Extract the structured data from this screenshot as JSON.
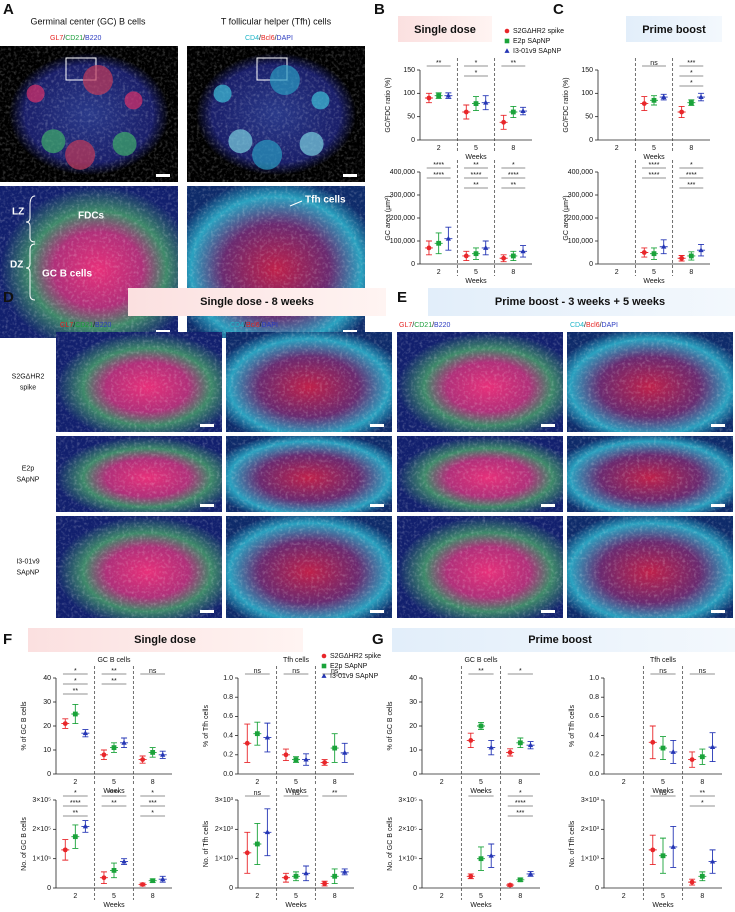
{
  "panel_a": {
    "letter": "A",
    "gc_title": "Germinal center (GC) B cells",
    "gc_stains": [
      {
        "text": "GL7",
        "color": "#e52320"
      },
      {
        "text": "/"
      },
      {
        "text": "CD21",
        "color": "#1a9e3a"
      },
      {
        "text": "/"
      },
      {
        "text": "B220",
        "color": "#2b3bc0"
      }
    ],
    "tfh_title": "T follicular helper (Tfh) cells",
    "tfh_stains": [
      {
        "text": "CD4",
        "color": "#1fb5c8"
      },
      {
        "text": "/"
      },
      {
        "text": "Bcl6",
        "color": "#e52320"
      },
      {
        "text": "/"
      },
      {
        "text": "DAPI",
        "color": "#2b3bc0"
      }
    ],
    "annotations": {
      "lz": "LZ",
      "dz": "DZ",
      "fdcs": "FDCs",
      "gc_b": "GC B cells",
      "tfh": "Tfh cells"
    }
  },
  "panel_b": {
    "letter": "B",
    "header": "Single dose"
  },
  "panel_c": {
    "letter": "C",
    "header": "Prime boost"
  },
  "panel_d": {
    "letter": "D",
    "header": "Single dose - 8 weeks",
    "rows": [
      [
        "S2GΔHR2",
        "spike"
      ],
      [
        "E2p",
        "SApNP"
      ],
      [
        "I3-01v9",
        "SApNP"
      ]
    ]
  },
  "panel_e": {
    "letter": "E",
    "header": "Prime boost - 3 weeks + 5 weeks"
  },
  "panel_f": {
    "letter": "F",
    "header": "Single dose"
  },
  "panel_g": {
    "letter": "G",
    "header": "Prime boost"
  },
  "series": [
    {
      "name": "S2GΔHR2 spike",
      "color": "#e8262a",
      "marker": "circle"
    },
    {
      "name": "E2p SApNP",
      "color": "#1aa33a",
      "marker": "square"
    },
    {
      "name": "I3-01v9 SApNP",
      "color": "#2536b5",
      "marker": "triangle"
    }
  ],
  "charts": [
    {
      "ylabel": "GC/FDC ratio (%)",
      "xlabel": "Weeks",
      "categories": [
        "2",
        "5",
        "8"
      ],
      "ylim": [
        0,
        150
      ],
      "yticks": [
        0,
        50,
        100,
        150
      ],
      "series": [
        {
          "values": [
            90,
            60,
            38
          ],
          "errors": [
            10,
            15,
            15
          ]
        },
        {
          "values": [
            95,
            78,
            60
          ],
          "errors": [
            6,
            15,
            12
          ]
        },
        {
          "values": [
            95,
            80,
            62
          ],
          "errors": [
            6,
            15,
            8
          ]
        }
      ],
      "significance": [
        [
          "**"
        ],
        [
          "*",
          "*"
        ],
        [
          "**"
        ]
      ]
    },
    {
      "ylabel": "GC area (µm²)",
      "xlabel": "Weeks",
      "categories": [
        "2",
        "5",
        "8"
      ],
      "ylim": [
        0,
        400000
      ],
      "yticks": [
        0,
        {
          "value": 100000,
          "label": "100,000"
        },
        {
          "value": 200000,
          "label": "200,000"
        },
        {
          "value": 300000,
          "label": "300,000"
        },
        {
          "value": 400000,
          "label": "400,000"
        }
      ],
      "series": [
        {
          "values": [
            70000,
            35000,
            25000
          ],
          "errors": [
            30000,
            20000,
            15000
          ]
        },
        {
          "values": [
            90000,
            45000,
            35000
          ],
          "errors": [
            45000,
            25000,
            20000
          ]
        },
        {
          "values": [
            110000,
            70000,
            55000
          ],
          "errors": [
            50000,
            30000,
            25000
          ]
        }
      ],
      "significance": [
        [
          "****",
          "****"
        ],
        [
          "**",
          "****",
          "**"
        ],
        [
          "*",
          "****",
          "**"
        ]
      ]
    },
    {
      "ylabel": "GC/FDC ratio (%)",
      "xlabel": "Weeks",
      "categories": [
        "2",
        "5",
        "8"
      ],
      "ylim": [
        0,
        150
      ],
      "yticks": [
        0,
        50,
        100,
        150
      ],
      "series": [
        {
          "values": [
            null,
            78,
            60
          ],
          "errors": [
            null,
            15,
            12
          ]
        },
        {
          "values": [
            null,
            85,
            80
          ],
          "errors": [
            null,
            10,
            6
          ]
        },
        {
          "values": [
            null,
            92,
            92
          ],
          "errors": [
            null,
            6,
            8
          ]
        }
      ],
      "significance": [
        [],
        [
          "ns"
        ],
        [
          "***",
          "*",
          "*"
        ]
      ]
    },
    {
      "ylabel": "GC area (µm²)",
      "xlabel": "Weeks",
      "categories": [
        "2",
        "5",
        "8"
      ],
      "ylim": [
        0,
        400000
      ],
      "yticks": [
        0,
        {
          "value": 100000,
          "label": "100,000"
        },
        {
          "value": 200000,
          "label": "200,000"
        },
        {
          "value": 300000,
          "label": "300,000"
        },
        {
          "value": 400000,
          "label": "400,000"
        }
      ],
      "series": [
        {
          "values": [
            null,
            50000,
            25000
          ],
          "errors": [
            null,
            20000,
            12000
          ]
        },
        {
          "values": [
            null,
            45000,
            35000
          ],
          "errors": [
            null,
            25000,
            18000
          ]
        },
        {
          "values": [
            null,
            75000,
            60000
          ],
          "errors": [
            null,
            30000,
            25000
          ]
        }
      ],
      "significance": [
        [],
        [
          "****",
          "****"
        ],
        [
          "*",
          "****",
          "***"
        ]
      ]
    },
    {
      "title": "GC B cells",
      "ylabel": "% of GC B cells",
      "xlabel": "Weeks",
      "categories": [
        "2",
        "5",
        "8"
      ],
      "ylim": [
        0,
        40
      ],
      "yticks": [
        0,
        10,
        20,
        30,
        40
      ],
      "series": [
        {
          "values": [
            21,
            8,
            6
          ],
          "errors": [
            2,
            2,
            1.5
          ]
        },
        {
          "values": [
            25,
            11,
            9
          ],
          "errors": [
            4,
            2,
            2
          ]
        },
        {
          "values": [
            17,
            13,
            8
          ],
          "errors": [
            1.5,
            2,
            1.5
          ]
        }
      ],
      "significance": [
        [
          "*",
          "*",
          "**"
        ],
        [
          "**",
          "**"
        ],
        [
          "ns"
        ]
      ]
    },
    {
      "title": "Tfh cells",
      "ylabel": "% of Tfh cells",
      "xlabel": "Weeks",
      "categories": [
        "2",
        "5",
        "8"
      ],
      "ylim": [
        0,
        1
      ],
      "yticks": [
        {
          "value": 0,
          "label": "0.0"
        },
        0.2,
        0.4,
        0.6,
        0.8,
        {
          "value": 1,
          "label": "1.0"
        }
      ],
      "series": [
        {
          "values": [
            0.32,
            0.2,
            0.12
          ],
          "errors": [
            0.2,
            0.06,
            0.03
          ]
        },
        {
          "values": [
            0.42,
            0.15,
            0.27
          ],
          "errors": [
            0.12,
            0.03,
            0.15
          ]
        },
        {
          "values": [
            0.38,
            0.15,
            0.22
          ],
          "errors": [
            0.15,
            0.06,
            0.1
          ]
        }
      ],
      "significance": [
        [
          "ns"
        ],
        [
          "ns"
        ],
        [
          "ns"
        ]
      ]
    },
    {
      "ylabel": "No. of GC B cells",
      "xlabel": "Weeks",
      "categories": [
        "2",
        "5",
        "8"
      ],
      "ylim": [
        0,
        300000
      ],
      "yticks": [
        0,
        {
          "value": 100000,
          "label": "1×10⁵"
        },
        {
          "value": 200000,
          "label": "2×10⁵"
        },
        {
          "value": 300000,
          "label": "3×10⁵"
        }
      ],
      "series": [
        {
          "values": [
            130000,
            35000,
            12000
          ],
          "errors": [
            35000,
            20000,
            5000
          ]
        },
        {
          "values": [
            175000,
            60000,
            25000
          ],
          "errors": [
            40000,
            25000,
            6000
          ]
        },
        {
          "values": [
            210000,
            90000,
            30000
          ],
          "errors": [
            20000,
            10000,
            10000
          ]
        }
      ],
      "significance": [
        [
          "*",
          "****",
          "**"
        ],
        [
          "****",
          "**"
        ],
        [
          "*",
          "***",
          "*"
        ]
      ]
    },
    {
      "ylabel": "No. of Tfh cells",
      "xlabel": "Weeks",
      "categories": [
        "2",
        "5",
        "8"
      ],
      "ylim": [
        0,
        3000
      ],
      "yticks": [
        0,
        {
          "value": 1000,
          "label": "1×10³"
        },
        {
          "value": 2000,
          "label": "2×10³"
        },
        {
          "value": 3000,
          "label": "3×10³"
        }
      ],
      "series": [
        {
          "values": [
            1200,
            350,
            150
          ],
          "errors": [
            700,
            150,
            80
          ]
        },
        {
          "values": [
            1500,
            400,
            400
          ],
          "errors": [
            700,
            150,
            250
          ]
        },
        {
          "values": [
            1900,
            500,
            550
          ],
          "errors": [
            800,
            250,
            100
          ]
        }
      ],
      "significance": [
        [
          "ns"
        ],
        [
          "ns"
        ],
        [
          "**"
        ]
      ]
    },
    {
      "title": "GC B cells",
      "ylabel": "% of GC B cells",
      "xlabel": "Weeks",
      "categories": [
        "2",
        "5",
        "8"
      ],
      "ylim": [
        0,
        40
      ],
      "yticks": [
        0,
        10,
        20,
        30,
        40
      ],
      "series": [
        {
          "values": [
            null,
            14,
            9
          ],
          "errors": [
            null,
            3,
            1.5
          ]
        },
        {
          "values": [
            null,
            20,
            13
          ],
          "errors": [
            null,
            1.5,
            2
          ]
        },
        {
          "values": [
            null,
            11,
            12
          ],
          "errors": [
            null,
            3,
            1.5
          ]
        }
      ],
      "significance": [
        [],
        [
          "**"
        ],
        [
          "*"
        ]
      ]
    },
    {
      "title": "Tfh cells",
      "ylabel": "% of Tfh cells",
      "xlabel": "Weeks",
      "categories": [
        "2",
        "5",
        "8"
      ],
      "ylim": [
        0,
        1
      ],
      "yticks": [
        {
          "value": 0,
          "label": "0.0"
        },
        0.2,
        0.4,
        0.6,
        0.8,
        {
          "value": 1,
          "label": "1.0"
        }
      ],
      "series": [
        {
          "values": [
            null,
            0.33,
            0.15
          ],
          "errors": [
            null,
            0.17,
            0.08
          ]
        },
        {
          "values": [
            null,
            0.27,
            0.18
          ],
          "errors": [
            null,
            0.12,
            0.08
          ]
        },
        {
          "values": [
            null,
            0.23,
            0.28
          ],
          "errors": [
            null,
            0.12,
            0.15
          ]
        }
      ],
      "significance": [
        [],
        [
          "ns"
        ],
        [
          "ns"
        ]
      ]
    },
    {
      "ylabel": "No. of GC B cells",
      "xlabel": "Weeks",
      "categories": [
        "2",
        "5",
        "8"
      ],
      "ylim": [
        0,
        300000
      ],
      "yticks": [
        0,
        {
          "value": 100000,
          "label": "1×10⁵"
        },
        {
          "value": 200000,
          "label": "2×10⁵"
        },
        {
          "value": 300000,
          "label": "3×10⁵"
        }
      ],
      "series": [
        {
          "values": [
            null,
            40000,
            10000
          ],
          "errors": [
            null,
            8000,
            4000
          ]
        },
        {
          "values": [
            null,
            100000,
            28000
          ],
          "errors": [
            null,
            40000,
            6000
          ]
        },
        {
          "values": [
            null,
            110000,
            48000
          ],
          "errors": [
            null,
            40000,
            8000
          ]
        }
      ],
      "significance": [
        [],
        [
          "*"
        ],
        [
          "*",
          "****",
          "***"
        ]
      ]
    },
    {
      "ylabel": "No. of Tfh cells",
      "xlabel": "Weeks",
      "categories": [
        "2",
        "5",
        "8"
      ],
      "ylim": [
        0,
        3000
      ],
      "yticks": [
        0,
        {
          "value": 1000,
          "label": "1×10³"
        },
        {
          "value": 2000,
          "label": "2×10³"
        },
        {
          "value": 3000,
          "label": "3×10³"
        }
      ],
      "series": [
        {
          "values": [
            null,
            1300,
            200
          ],
          "errors": [
            null,
            500,
            100
          ]
        },
        {
          "values": [
            null,
            1100,
            400
          ],
          "errors": [
            null,
            600,
            150
          ]
        },
        {
          "values": [
            null,
            1400,
            900
          ],
          "errors": [
            null,
            700,
            400
          ]
        }
      ],
      "significance": [
        [],
        [
          "ns"
        ],
        [
          "**",
          "*"
        ]
      ]
    }
  ]
}
